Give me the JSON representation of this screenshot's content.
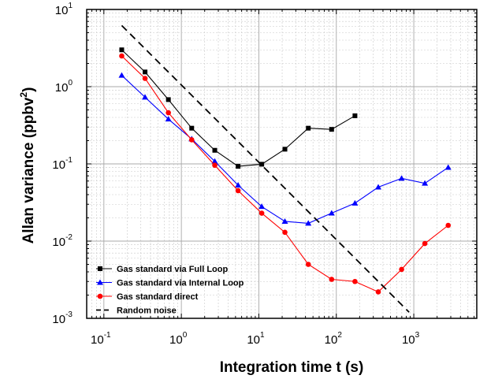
{
  "chart_data": {
    "type": "line",
    "x_scale": "log",
    "y_scale": "log",
    "xlim": [
      0.06,
      6500
    ],
    "ylim": [
      0.001,
      10
    ],
    "grid": true,
    "legend_position": "bottom-left",
    "xlabel": "Integration time t (s)",
    "ylabel": "Allan variance (ppbv",
    "ylabel_sup": "2",
    "ylabel_end": ")",
    "x_ticks": [
      {
        "base": "10",
        "exp": "-1",
        "value": 0.1
      },
      {
        "base": "10",
        "exp": "0",
        "value": 1
      },
      {
        "base": "10",
        "exp": "1",
        "value": 10
      },
      {
        "base": "10",
        "exp": "2",
        "value": 100
      },
      {
        "base": "10",
        "exp": "3",
        "value": 1000
      }
    ],
    "y_ticks": [
      {
        "base": "10",
        "exp": "-3",
        "value": 0.001
      },
      {
        "base": "10",
        "exp": "-2",
        "value": 0.01
      },
      {
        "base": "10",
        "exp": "-1",
        "value": 0.1
      },
      {
        "base": "10",
        "exp": "0",
        "value": 1
      },
      {
        "base": "10",
        "exp": "1",
        "value": 10
      }
    ],
    "series": [
      {
        "name": "Gas standard via Full Loop",
        "color": "#000000",
        "marker": "square",
        "line": "solid",
        "x": [
          0.17,
          0.34,
          0.68,
          1.36,
          2.7,
          5.4,
          10.9,
          21.7,
          43.5,
          87,
          174
        ],
        "y": [
          3.0,
          1.55,
          0.68,
          0.29,
          0.15,
          0.093,
          0.099,
          0.155,
          0.29,
          0.28,
          0.42
        ]
      },
      {
        "name": "Gas standard via Internal Loop",
        "color": "#0000ff",
        "marker": "triangle",
        "line": "solid",
        "x": [
          0.17,
          0.34,
          0.68,
          1.36,
          2.7,
          5.4,
          10.9,
          21.7,
          43.5,
          87,
          174,
          348,
          696,
          1390,
          2780
        ],
        "y": [
          1.4,
          0.73,
          0.38,
          0.21,
          0.108,
          0.053,
          0.028,
          0.018,
          0.017,
          0.023,
          0.031,
          0.05,
          0.065,
          0.056,
          0.09
        ]
      },
      {
        "name": "Gas standard direct",
        "color": "#ff0000",
        "marker": "circle",
        "line": "solid",
        "x": [
          0.17,
          0.34,
          0.68,
          1.36,
          2.7,
          5.4,
          10.9,
          21.7,
          43.5,
          87,
          174,
          348,
          696,
          1390,
          2780
        ],
        "y": [
          2.5,
          1.28,
          0.46,
          0.205,
          0.096,
          0.045,
          0.023,
          0.013,
          0.005,
          0.0032,
          0.003,
          0.0022,
          0.0043,
          0.0093,
          0.016
        ]
      },
      {
        "name": "Random noise",
        "color": "#000000",
        "marker": "none",
        "line": "dashed",
        "x": [
          0.17,
          870
        ],
        "y": [
          6.2,
          0.0012
        ]
      }
    ]
  }
}
